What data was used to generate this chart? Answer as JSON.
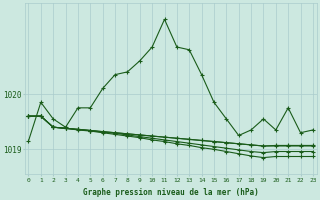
{
  "title": "Graphe pression niveau de la mer (hPa)",
  "background_color": "#cce8e0",
  "grid_color": "#aacccc",
  "line_color": "#1a5c1a",
  "x_labels": [
    "0",
    "1",
    "2",
    "3",
    "4",
    "5",
    "6",
    "7",
    "8",
    "9",
    "10",
    "11",
    "12",
    "13",
    "14",
    "15",
    "16",
    "17",
    "18",
    "19",
    "20",
    "21",
    "22",
    "23"
  ],
  "ylim": [
    1018.55,
    1021.65
  ],
  "yticks": [
    1019,
    1020
  ],
  "series": [
    [
      1019.15,
      1019.85,
      1019.55,
      1019.4,
      1019.75,
      1019.75,
      1020.1,
      1020.35,
      1020.4,
      1020.6,
      1020.85,
      1021.35,
      1020.85,
      1020.8,
      1020.35,
      1019.85,
      1019.55,
      1019.25,
      1019.35,
      1019.55,
      1019.35,
      1019.75,
      1019.3,
      1019.35
    ],
    [
      1019.6,
      1019.6,
      1019.4,
      1019.38,
      1019.36,
      1019.34,
      1019.32,
      1019.3,
      1019.28,
      1019.26,
      1019.24,
      1019.22,
      1019.2,
      1019.18,
      1019.16,
      1019.14,
      1019.12,
      1019.1,
      1019.08,
      1019.06,
      1019.07,
      1019.07,
      1019.07,
      1019.07
    ],
    [
      1019.6,
      1019.6,
      1019.4,
      1019.38,
      1019.35,
      1019.33,
      1019.3,
      1019.27,
      1019.24,
      1019.21,
      1019.17,
      1019.14,
      1019.1,
      1019.07,
      1019.03,
      1019.0,
      1018.96,
      1018.92,
      1018.88,
      1018.85,
      1018.87,
      1018.87,
      1018.87,
      1018.87
    ],
    [
      1019.6,
      1019.6,
      1019.4,
      1019.38,
      1019.36,
      1019.34,
      1019.31,
      1019.29,
      1019.26,
      1019.23,
      1019.2,
      1019.17,
      1019.14,
      1019.11,
      1019.08,
      1019.05,
      1019.02,
      1018.99,
      1018.96,
      1018.94,
      1018.96,
      1018.96,
      1018.96,
      1018.96
    ],
    [
      1019.6,
      1019.6,
      1019.4,
      1019.38,
      1019.36,
      1019.34,
      1019.32,
      1019.3,
      1019.28,
      1019.26,
      1019.24,
      1019.22,
      1019.2,
      1019.18,
      1019.16,
      1019.14,
      1019.12,
      1019.1,
      1019.08,
      1019.06,
      1019.06,
      1019.06,
      1019.06,
      1019.06
    ]
  ],
  "marker": "+",
  "markersize": 3,
  "linewidth": 0.8
}
